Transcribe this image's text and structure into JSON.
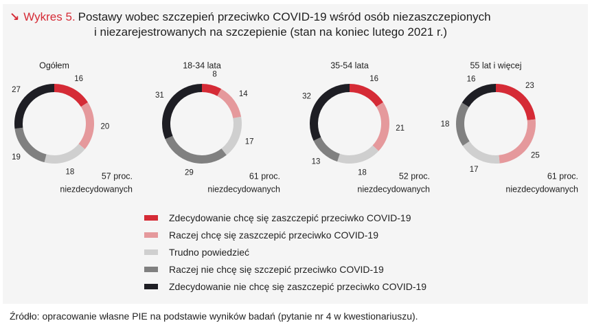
{
  "header": {
    "prefix": "Wykres 5.",
    "line1": "Postawy wobec szczepień przeciwko COVID-19 wśród osób niezaszczepionych",
    "line2": "i niezarejestrowanych na szczepienie (stan na koniec lutego 2021 r.)"
  },
  "colors": {
    "panel_background": "#f5f5f5",
    "accent": "#d52b36",
    "segments": [
      "#d52b36",
      "#e5999c",
      "#cfcfcf",
      "#808080",
      "#1e1e24"
    ]
  },
  "chart_data": {
    "type": "pie",
    "variant": "donut",
    "categories": [
      "Zdecydowanie chcę się zaszczepić przeciwko COVID-19",
      "Raczej chcę się zaszczepić przeciwko COVID-19",
      "Trudno powiedzieć",
      "Raczej nie chcę się szczepić przeciwko COVID-19",
      "Zdecydowanie nie chcę się zaszczepić przeciwko COVID-19"
    ],
    "series": [
      {
        "name": "Ogółem",
        "values": [
          16,
          20,
          18,
          19,
          27
        ],
        "undecided_value": "57 proc.",
        "undecided_label": "niezdecydowanych"
      },
      {
        "name": "18-34 lata",
        "values": [
          8,
          14,
          17,
          29,
          31
        ],
        "undecided_value": "61 proc.",
        "undecided_label": "niezdecydowanych"
      },
      {
        "name": "35-54 lata",
        "values": [
          16,
          21,
          18,
          13,
          32
        ],
        "undecided_value": "52 proc.",
        "undecided_label": "niezdecydowanych"
      },
      {
        "name": "55 lat i więcej",
        "values": [
          23,
          25,
          17,
          18,
          16
        ],
        "undecided_value": "61 proc.",
        "undecided_label": "niezdecydowanych"
      }
    ],
    "legend_position": "bottom"
  },
  "source": "Źródło: opracowanie własne PIE na podstawie wyników badań (pytanie nr 4 w kwestionariuszu)."
}
